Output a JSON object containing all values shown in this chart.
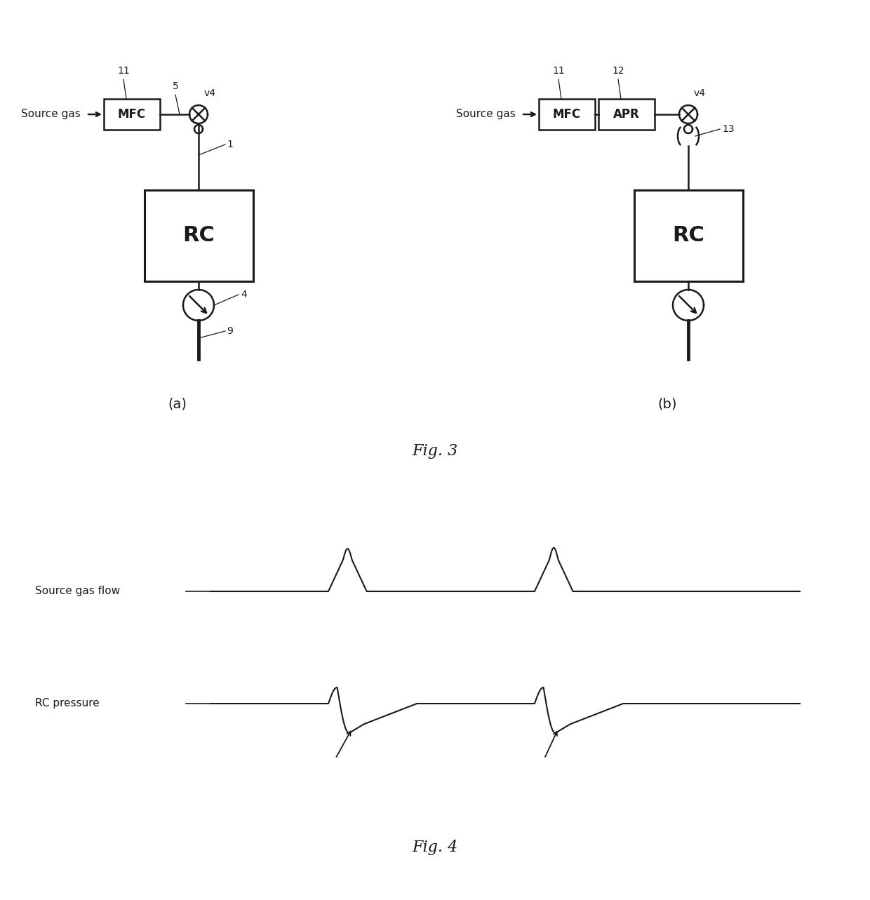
{
  "bg_color": "#ffffff",
  "fig_width": 12.4,
  "fig_height": 12.83,
  "fig3_label": "Fig. 3",
  "fig4_label": "Fig. 4",
  "panel_a_label": "(a)",
  "panel_b_label": "(b)",
  "source_gas_label": "Source gas",
  "mfc_label": "MFC",
  "apr_label": "APR",
  "rc_label": "RC",
  "v4_label": "v4",
  "label_11": "11",
  "label_12": "12",
  "label_5": "5",
  "label_1": "1",
  "label_4": "4",
  "label_9": "9",
  "label_13": "13",
  "source_gas_flow_label": "Source gas flow",
  "rc_pressure_label": "RC pressure",
  "line_color": "#1a1a1a",
  "font_color": "#1a1a1a",
  "lw": 1.8,
  "lw_thick": 3.5
}
